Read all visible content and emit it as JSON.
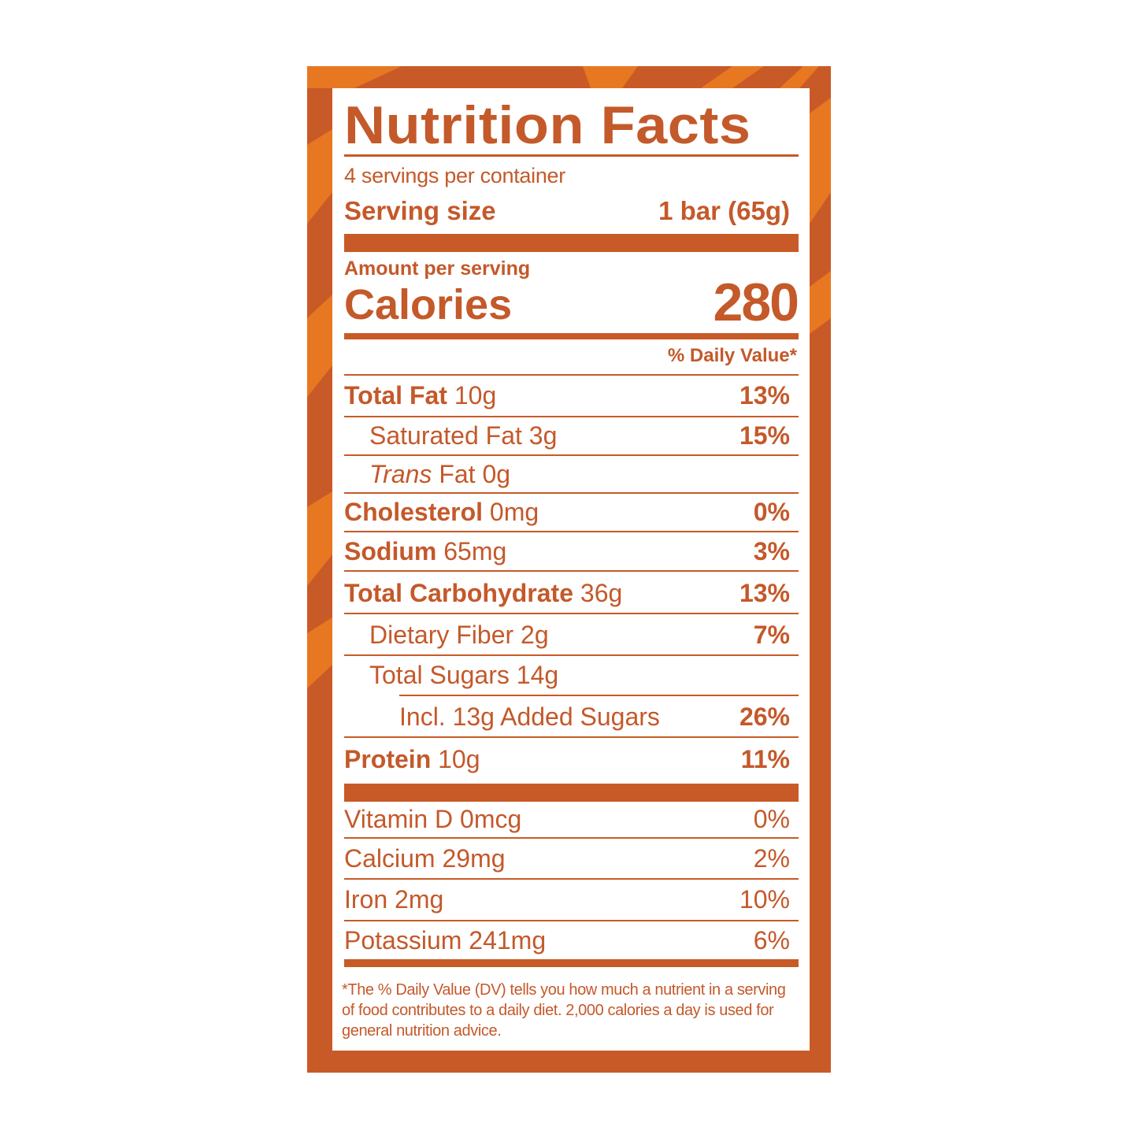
{
  "label": {
    "title": "Nutrition Facts",
    "servings_per_container": "4 servings per container",
    "serving_size_label": "Serving size",
    "serving_size_value": "1 bar (65g)",
    "amount_per_serving": "Amount per serving",
    "calories_label": "Calories",
    "calories_value": "280",
    "daily_value_header": "% Daily Value*",
    "nutrients": [
      {
        "name": "Total Fat",
        "amount": "10g",
        "dv": "13%"
      },
      {
        "name": "Saturated Fat 3g",
        "amount": "",
        "dv": "15%"
      },
      {
        "name": "Trans",
        "amount": "Fat 0g",
        "dv": ""
      },
      {
        "name": "Cholesterol",
        "amount": "0mg",
        "dv": "0%"
      },
      {
        "name": "Sodium",
        "amount": "65mg",
        "dv": "3%"
      },
      {
        "name": "Total Carbohydrate",
        "amount": "36g",
        "dv": "13%"
      },
      {
        "name": "Dietary Fiber 2g",
        "amount": "",
        "dv": "7%"
      },
      {
        "name": "Total Sugars 14g",
        "amount": "",
        "dv": ""
      },
      {
        "name": "Incl. 13g Added Sugars",
        "amount": "",
        "dv": "26%"
      },
      {
        "name": "Protein",
        "amount": "10g",
        "dv": "11%"
      }
    ],
    "vitamins": [
      {
        "name": "Vitamin D 0mcg",
        "dv": "0%"
      },
      {
        "name": "Calcium 29mg",
        "dv": "2%"
      },
      {
        "name": "Iron 2mg",
        "dv": "10%"
      },
      {
        "name": "Potassium 241mg",
        "dv": "6%"
      }
    ],
    "footnote": "*The % Daily Value (DV) tells you how much a nutrient in a serving of food contributes to a daily diet. 2,000 calories a day is used for general nutrition advice."
  },
  "colors": {
    "text": "#c4592a",
    "border": "#c85a27",
    "stripe": "#e87722",
    "panel": "#ffffff"
  }
}
